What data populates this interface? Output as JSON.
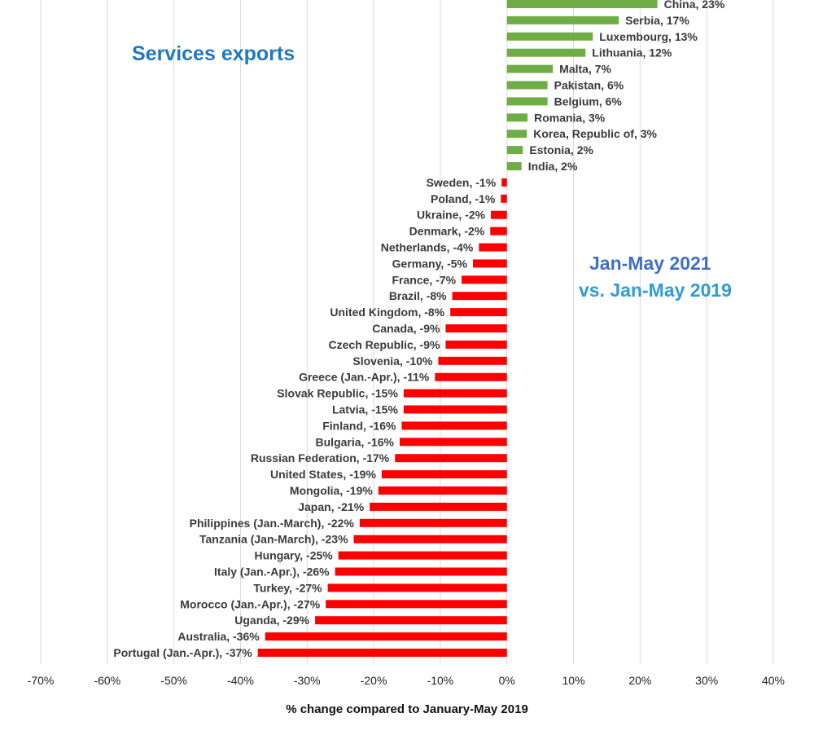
{
  "title": "Services exports",
  "period": {
    "line1": "Jan-May 2021",
    "line2": "vs. Jan-May 2019"
  },
  "colors": {
    "positive": "#70ad47",
    "negative": "#ff0000",
    "title": "#1f78c1",
    "period_line1": "#3f6fc6",
    "period_line2": "#2f9bd8",
    "grid": "#d9d9d9"
  },
  "chart_data": {
    "type": "bar",
    "orientation": "horizontal",
    "title": "Services exports",
    "xlabel": "% change compared to January-May 2019",
    "ylabel": "",
    "xlim": [
      -70,
      40
    ],
    "xticks": [
      -70,
      -60,
      -50,
      -40,
      -30,
      -20,
      -10,
      0,
      10,
      20,
      30,
      40
    ],
    "xtick_labels": [
      "-70%",
      "-60%",
      "-50%",
      "-40%",
      "-30%",
      "-20%",
      "-10%",
      "0%",
      "10%",
      "20%",
      "30%",
      "40%"
    ],
    "grid": true,
    "categories": [
      "China",
      "Serbia",
      "Luxembourg",
      "Lithuania",
      "Malta",
      "Pakistan",
      "Belgium",
      "Romania",
      "Korea, Republic of",
      "Estonia",
      "India",
      "Sweden",
      "Poland",
      "Ukraine",
      "Denmark",
      "Netherlands",
      "Germany",
      "France",
      "Brazil",
      "United Kingdom",
      "Canada",
      "Czech Republic",
      "Slovenia",
      "Greece (Jan.-Apr.)",
      "Slovak Republic",
      "Latvia",
      "Finland",
      "Bulgaria",
      "Russian Federation",
      "United States",
      "Mongolia",
      "Japan",
      "Philippines (Jan.-March)",
      "Tanzania  (Jan-March)",
      "Hungary",
      "Italy (Jan.-Apr.)",
      "Turkey",
      "Morocco (Jan.-Apr.)",
      "Uganda",
      "Australia",
      "Portugal (Jan.-Apr.)"
    ],
    "values": [
      22.6,
      16.8,
      12.9,
      11.8,
      6.9,
      6.1,
      6.1,
      3.1,
      3.0,
      2.4,
      2.2,
      -0.8,
      -0.9,
      -2.4,
      -2.5,
      -4.2,
      -5.1,
      -6.8,
      -8.2,
      -8.5,
      -9.2,
      -9.2,
      -10.3,
      -10.8,
      -15.5,
      -15.5,
      -15.8,
      -16.1,
      -16.8,
      -18.8,
      -19.3,
      -20.6,
      -22.1,
      -23.0,
      -25.3,
      -25.8,
      -26.9,
      -27.2,
      -28.8,
      -36.3,
      -37.4
    ],
    "labels": [
      "China, 23%",
      "Serbia, 17%",
      "Luxembourg, 13%",
      "Lithuania, 12%",
      "Malta, 7%",
      "Pakistan, 6%",
      "Belgium, 6%",
      "Romania, 3%",
      "Korea, Republic of, 3%",
      "Estonia, 2%",
      "India, 2%",
      "Sweden, -1%",
      "Poland, -1%",
      "Ukraine, -2%",
      "Denmark, -2%",
      "Netherlands, -4%",
      "Germany, -5%",
      "France, -7%",
      "Brazil, -8%",
      "United Kingdom, -8%",
      "Canada, -9%",
      "Czech Republic, -9%",
      "Slovenia, -10%",
      "Greece (Jan.-Apr.), -11%",
      "Slovak Republic, -15%",
      "Latvia, -15%",
      "Finland, -16%",
      "Bulgaria, -16%",
      "Russian Federation, -17%",
      "United States, -19%",
      "Mongolia, -19%",
      "Japan, -21%",
      "Philippines (Jan.-March), -22%",
      "Tanzania  (Jan-March), -23%",
      "Hungary, -25%",
      "Italy (Jan.-Apr.), -26%",
      "Turkey, -27%",
      "Morocco (Jan.-Apr.), -27%",
      "Uganda, -29%",
      "Australia, -36%",
      "Portugal (Jan.-Apr.), -37%"
    ]
  }
}
